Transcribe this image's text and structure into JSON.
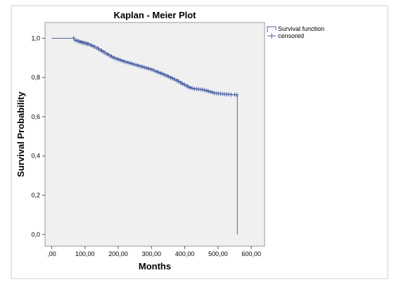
{
  "chart_data": {
    "type": "line",
    "title": "Kaplan - Meier Plot",
    "xlabel": "Months",
    "ylabel": "Survival Probability",
    "xlim": [
      -20,
      640
    ],
    "ylim": [
      -0.06,
      1.08
    ],
    "x_ticks": [
      0,
      100,
      200,
      300,
      400,
      500,
      600
    ],
    "x_tick_labels": [
      ",00",
      "100,00",
      "200,00",
      "300,00",
      "400,00",
      "500,00",
      "600,00"
    ],
    "y_ticks": [
      0,
      0.2,
      0.4,
      0.6,
      0.8,
      1.0
    ],
    "y_tick_labels": [
      "0,0",
      "0,2",
      "0,4",
      "0,6",
      "0,8",
      "1,0"
    ],
    "grid": false,
    "legend_position": "top-right",
    "line_color": "#4a5f9f",
    "series": [
      {
        "name": "Survival function",
        "x": [
          0,
          65,
          70,
          80,
          90,
          100,
          110,
          120,
          130,
          140,
          150,
          160,
          170,
          180,
          190,
          200,
          210,
          220,
          230,
          240,
          250,
          260,
          270,
          280,
          290,
          300,
          310,
          320,
          330,
          340,
          350,
          360,
          370,
          380,
          390,
          400,
          410,
          420,
          430,
          440,
          450,
          460,
          470,
          480,
          490,
          500,
          510,
          520,
          530,
          540,
          550,
          558,
          558
        ],
        "y": [
          1.0,
          1.0,
          0.99,
          0.985,
          0.98,
          0.975,
          0.97,
          0.962,
          0.955,
          0.945,
          0.935,
          0.925,
          0.915,
          0.905,
          0.898,
          0.892,
          0.886,
          0.88,
          0.875,
          0.87,
          0.865,
          0.86,
          0.855,
          0.85,
          0.845,
          0.84,
          0.833,
          0.826,
          0.82,
          0.812,
          0.805,
          0.797,
          0.789,
          0.78,
          0.77,
          0.762,
          0.752,
          0.745,
          0.742,
          0.74,
          0.738,
          0.735,
          0.73,
          0.725,
          0.72,
          0.718,
          0.716,
          0.715,
          0.714,
          0.712,
          0.712,
          0.712,
          0.0
        ]
      },
      {
        "name": "censored",
        "x": [
          66,
          70,
          75,
          80,
          84,
          88,
          92,
          96,
          100,
          104,
          108,
          112,
          118,
          124,
          130,
          136,
          142,
          148,
          154,
          160,
          166,
          172,
          178,
          184,
          190,
          196,
          202,
          208,
          214,
          220,
          226,
          232,
          238,
          244,
          250,
          256,
          262,
          268,
          274,
          280,
          286,
          292,
          298,
          304,
          310,
          316,
          322,
          328,
          334,
          340,
          346,
          352,
          358,
          364,
          370,
          376,
          382,
          388,
          394,
          400,
          406,
          412,
          418,
          424,
          430,
          436,
          442,
          448,
          454,
          460,
          466,
          472,
          478,
          484,
          490,
          496,
          502,
          508,
          514,
          520,
          526,
          532,
          540,
          550,
          556
        ],
        "y": [
          1.0,
          0.99,
          0.988,
          0.985,
          0.982,
          0.98,
          0.978,
          0.976,
          0.975,
          0.972,
          0.971,
          0.969,
          0.964,
          0.959,
          0.955,
          0.949,
          0.943,
          0.937,
          0.931,
          0.925,
          0.919,
          0.913,
          0.907,
          0.902,
          0.898,
          0.894,
          0.89,
          0.887,
          0.883,
          0.88,
          0.877,
          0.874,
          0.871,
          0.868,
          0.865,
          0.862,
          0.859,
          0.856,
          0.853,
          0.85,
          0.847,
          0.844,
          0.841,
          0.838,
          0.833,
          0.829,
          0.824,
          0.821,
          0.817,
          0.812,
          0.808,
          0.803,
          0.798,
          0.794,
          0.789,
          0.784,
          0.778,
          0.772,
          0.766,
          0.762,
          0.756,
          0.75,
          0.746,
          0.744,
          0.742,
          0.741,
          0.74,
          0.739,
          0.737,
          0.735,
          0.732,
          0.729,
          0.726,
          0.723,
          0.72,
          0.719,
          0.718,
          0.717,
          0.716,
          0.715,
          0.714,
          0.714,
          0.712,
          0.712,
          0.712
        ]
      }
    ]
  }
}
